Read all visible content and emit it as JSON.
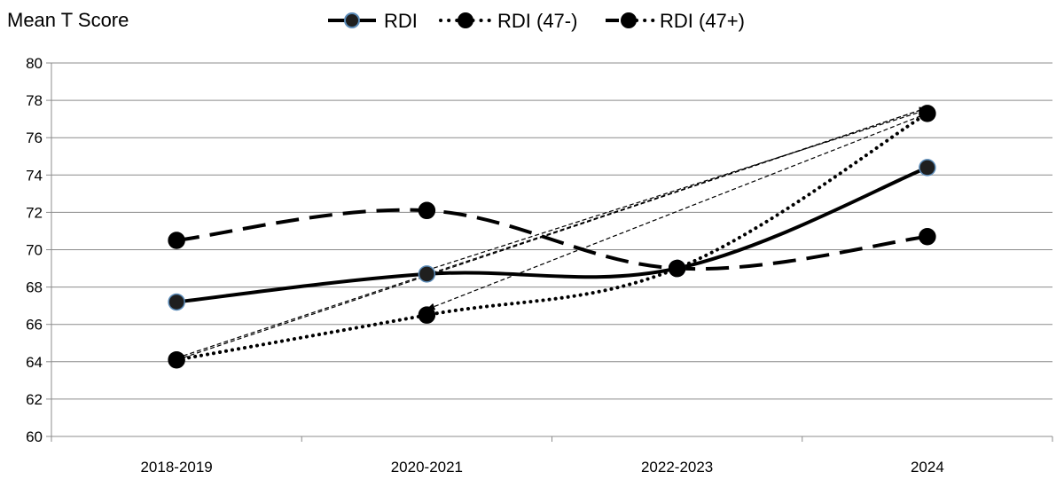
{
  "chart_data": {
    "type": "line",
    "ylabel": "Mean T Score",
    "xlabel": "",
    "categories": [
      "2018-2019",
      "2020-2021",
      "2022-2023",
      "2024"
    ],
    "ylim": [
      60,
      80
    ],
    "yticks": [
      "60",
      "62",
      "64",
      "66",
      "68",
      "70",
      "72",
      "74",
      "76",
      "78",
      "80"
    ],
    "grid": true,
    "legend_position": "top",
    "series": [
      {
        "name": "RDI",
        "values": [
          67.2,
          68.7,
          69.0,
          74.4
        ],
        "line_style": "solid",
        "marker_fill": "#1f1f1f",
        "marker_edge": "#5b8bb8"
      },
      {
        "name": "RDI (47-)",
        "values": [
          64.1,
          66.5,
          69.0,
          77.3
        ],
        "line_style": "dotted",
        "marker_fill": "#000000",
        "marker_edge": "#000000"
      },
      {
        "name": "RDI (47+)",
        "values": [
          70.5,
          72.1,
          69.0,
          70.7
        ],
        "line_style": "dashed",
        "marker_fill": "#000000",
        "marker_edge": "#000000"
      }
    ],
    "annotations": [
      {
        "type": "arrow",
        "from": [
          "2024",
          77.6
        ],
        "to": [
          "2018-2019",
          64.1
        ],
        "style": "thin-dashed"
      },
      {
        "type": "arrow",
        "from": [
          "2018-2019",
          64.2
        ],
        "to": [
          "2024",
          77.6
        ],
        "style": "thin-dashed"
      },
      {
        "type": "arrow",
        "from": [
          "2024",
          77.3
        ],
        "to": [
          "2020-2021",
          66.8
        ],
        "style": "thin-dashed"
      },
      {
        "type": "arrow",
        "from": [
          "2020-2021",
          68.9
        ],
        "to": [
          "2024",
          77.5
        ],
        "style": "thin-dashed"
      }
    ]
  }
}
